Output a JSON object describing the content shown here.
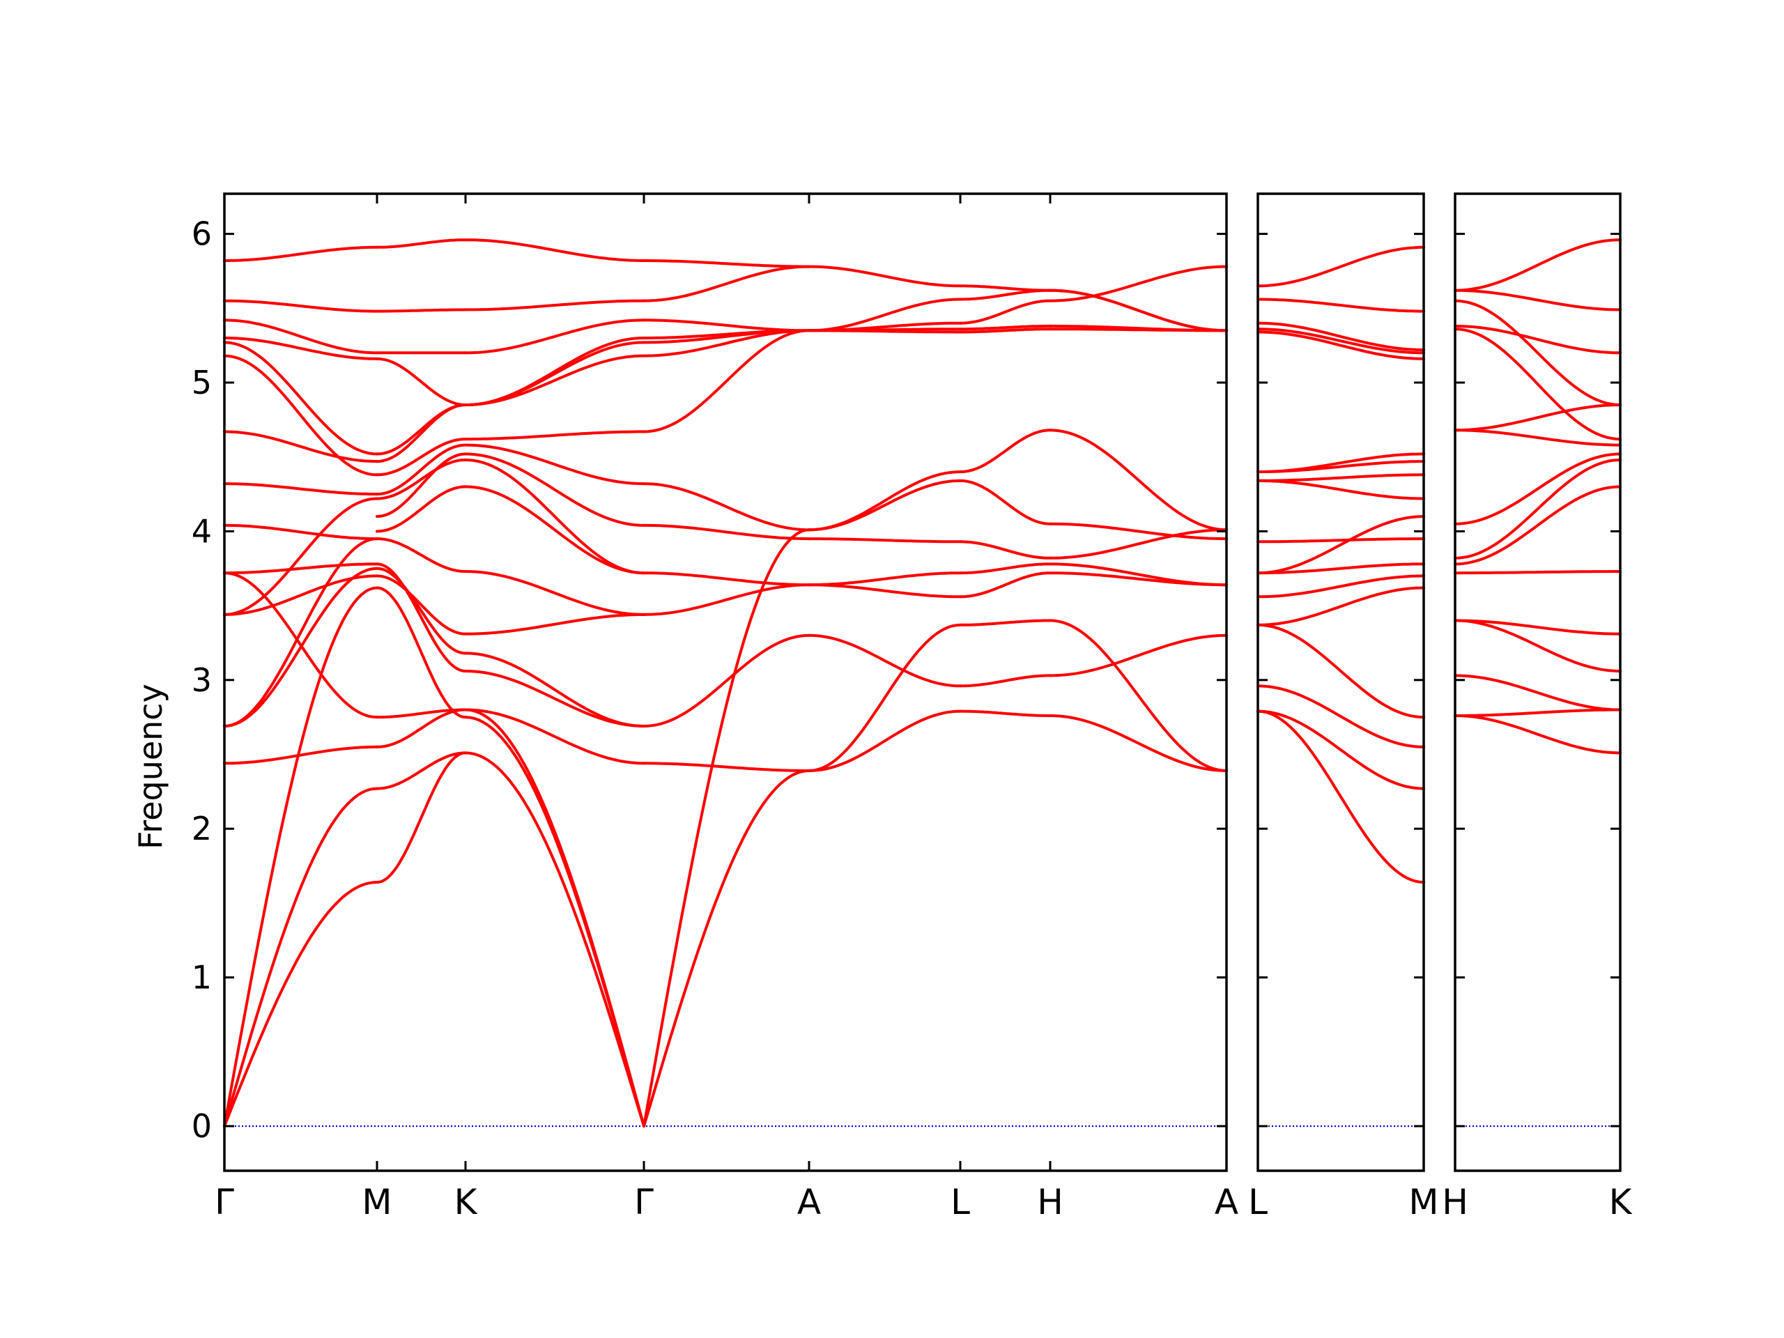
{
  "chart_data": {
    "type": "line",
    "title": "",
    "ylabel": "Frequency",
    "ylim": [
      -0.3,
      6.27
    ],
    "yticks": [
      0,
      1,
      2,
      3,
      4,
      5,
      6
    ],
    "ytick_labels": [
      "0",
      "1",
      "2",
      "3",
      "4",
      "5",
      "6"
    ],
    "grid": false,
    "line_color": "#ff0000",
    "zero_line_color": "#0000ff",
    "panels": [
      {
        "id": "panel-1",
        "path_labels": [
          "Γ",
          "M",
          "K",
          "Γ",
          "A",
          "L",
          "H",
          "A"
        ],
        "segments": [
          {
            "from": "Γ",
            "to": "M",
            "x": [
              0,
              1
            ],
            "bands": [
              [
                0,
                1.64
              ],
              [
                0,
                2.27
              ],
              [
                0,
                3.62
              ],
              [
                2.44,
                2.55
              ],
              [
                2.69,
                3.75
              ],
              [
                2.69,
                3.95
              ],
              [
                3.44,
                3.7
              ],
              [
                3.44,
                4.22
              ],
              [
                3.72,
                2.75
              ],
              [
                3.72,
                3.78
              ],
              [
                4.04,
                3.95
              ],
              [
                4.32,
                4.25
              ],
              [
                4.67,
                4.47
              ],
              [
                5.18,
                4.38
              ],
              [
                5.27,
                4.52
              ],
              [
                5.3,
                5.16
              ],
              [
                5.42,
                5.2
              ],
              [
                5.55,
                5.48
              ],
              [
                5.82,
                5.91
              ]
            ]
          },
          {
            "from": "M",
            "to": "K",
            "x": [
              0,
              1
            ],
            "bands": [
              [
                1.64,
                2.51
              ],
              [
                2.27,
                2.51
              ],
              [
                2.55,
                2.8
              ],
              [
                2.75,
                2.8
              ],
              [
                3.62,
                2.75
              ],
              [
                3.7,
                3.31
              ],
              [
                3.75,
                3.18
              ],
              [
                3.78,
                3.06
              ],
              [
                3.95,
                3.73
              ],
              [
                4.0,
                4.3
              ],
              [
                4.1,
                4.52
              ],
              [
                4.22,
                4.48
              ],
              [
                4.25,
                4.58
              ],
              [
                4.38,
                4.62
              ],
              [
                4.47,
                4.85
              ],
              [
                4.52,
                4.85
              ],
              [
                5.16,
                4.85
              ],
              [
                5.2,
                5.2
              ],
              [
                5.48,
                5.49
              ],
              [
                5.91,
                5.96
              ]
            ]
          },
          {
            "from": "K",
            "to": "Γ",
            "x": [
              0,
              1
            ],
            "bands": [
              [
                2.51,
                0
              ],
              [
                2.75,
                0
              ],
              [
                2.8,
                0
              ],
              [
                2.8,
                2.44
              ],
              [
                3.06,
                2.69
              ],
              [
                3.18,
                2.69
              ],
              [
                3.31,
                3.44
              ],
              [
                3.73,
                3.44
              ],
              [
                4.3,
                3.72
              ],
              [
                4.48,
                3.72
              ],
              [
                4.52,
                4.04
              ],
              [
                4.58,
                4.32
              ],
              [
                4.62,
                4.67
              ],
              [
                4.85,
                5.18
              ],
              [
                4.85,
                5.27
              ],
              [
                4.85,
                5.3
              ],
              [
                5.2,
                5.42
              ],
              [
                5.49,
                5.55
              ],
              [
                5.96,
                5.82
              ]
            ]
          },
          {
            "from": "Γ",
            "to": "A",
            "x": [
              0,
              1
            ],
            "bands": [
              [
                0,
                2.39
              ],
              [
                0,
                4.01
              ],
              [
                2.44,
                2.39
              ],
              [
                2.69,
                3.3
              ],
              [
                3.44,
                3.64
              ],
              [
                3.72,
                3.64
              ],
              [
                4.04,
                3.95
              ],
              [
                4.32,
                4.01
              ],
              [
                4.67,
                5.35
              ],
              [
                5.18,
                5.35
              ],
              [
                5.27,
                5.35
              ],
              [
                5.3,
                5.35
              ],
              [
                5.42,
                5.35
              ],
              [
                5.55,
                5.78
              ],
              [
                5.82,
                5.78
              ]
            ]
          },
          {
            "from": "A",
            "to": "L",
            "x": [
              0,
              1
            ],
            "bands": [
              [
                2.39,
                2.79
              ],
              [
                2.39,
                3.37
              ],
              [
                3.3,
                2.96
              ],
              [
                3.64,
                3.56
              ],
              [
                3.64,
                3.72
              ],
              [
                3.95,
                3.93
              ],
              [
                4.01,
                4.34
              ],
              [
                4.01,
                4.4
              ],
              [
                5.35,
                5.34
              ],
              [
                5.35,
                5.36
              ],
              [
                5.35,
                5.4
              ],
              [
                5.35,
                5.56
              ],
              [
                5.78,
                5.65
              ]
            ]
          },
          {
            "from": "L",
            "to": "H",
            "x": [
              0,
              1
            ],
            "bands": [
              [
                2.79,
                2.76
              ],
              [
                3.37,
                3.4
              ],
              [
                2.96,
                3.03
              ],
              [
                3.56,
                3.72
              ],
              [
                3.72,
                3.78
              ],
              [
                3.93,
                3.82
              ],
              [
                4.34,
                4.05
              ],
              [
                4.4,
                4.68
              ],
              [
                5.34,
                5.36
              ],
              [
                5.36,
                5.38
              ],
              [
                5.4,
                5.55
              ],
              [
                5.56,
                5.62
              ],
              [
                5.65,
                5.62
              ]
            ]
          },
          {
            "from": "H",
            "to": "A",
            "x": [
              0,
              1
            ],
            "bands": [
              [
                2.76,
                2.39
              ],
              [
                3.4,
                2.39
              ],
              [
                3.03,
                3.3
              ],
              [
                3.72,
                3.64
              ],
              [
                3.78,
                3.64
              ],
              [
                3.82,
                4.01
              ],
              [
                4.05,
                3.95
              ],
              [
                4.68,
                4.01
              ],
              [
                5.36,
                5.35
              ],
              [
                5.38,
                5.35
              ],
              [
                5.55,
                5.78
              ],
              [
                5.62,
                5.35
              ],
              [
                5.62,
                5.35
              ]
            ]
          }
        ]
      },
      {
        "id": "panel-2",
        "path_labels": [
          "L",
          "M"
        ],
        "segments": [
          {
            "from": "L",
            "to": "M",
            "x": [
              0,
              1
            ],
            "bands": [
              [
                2.79,
                1.64
              ],
              [
                2.79,
                2.27
              ],
              [
                2.96,
                2.55
              ],
              [
                3.37,
                2.75
              ],
              [
                3.37,
                3.62
              ],
              [
                3.56,
                3.7
              ],
              [
                3.72,
                3.78
              ],
              [
                3.72,
                4.1
              ],
              [
                3.93,
                3.95
              ],
              [
                4.34,
                4.22
              ],
              [
                4.34,
                4.38
              ],
              [
                4.4,
                4.47
              ],
              [
                4.4,
                4.52
              ],
              [
                5.34,
                5.16
              ],
              [
                5.36,
                5.2
              ],
              [
                5.4,
                5.22
              ],
              [
                5.56,
                5.48
              ],
              [
                5.65,
                5.91
              ]
            ]
          }
        ]
      },
      {
        "id": "panel-3",
        "path_labels": [
          "H",
          "K"
        ],
        "segments": [
          {
            "from": "H",
            "to": "K",
            "x": [
              0,
              1
            ],
            "bands": [
              [
                2.76,
                2.51
              ],
              [
                2.76,
                2.8
              ],
              [
                3.03,
                2.8
              ],
              [
                3.4,
                3.06
              ],
              [
                3.4,
                3.31
              ],
              [
                3.72,
                3.73
              ],
              [
                3.78,
                4.3
              ],
              [
                3.82,
                4.48
              ],
              [
                4.05,
                4.52
              ],
              [
                4.68,
                4.58
              ],
              [
                4.68,
                4.85
              ],
              [
                5.36,
                4.62
              ],
              [
                5.38,
                5.2
              ],
              [
                5.55,
                4.85
              ],
              [
                5.62,
                5.49
              ],
              [
                5.62,
                5.96
              ]
            ]
          }
        ]
      }
    ]
  }
}
